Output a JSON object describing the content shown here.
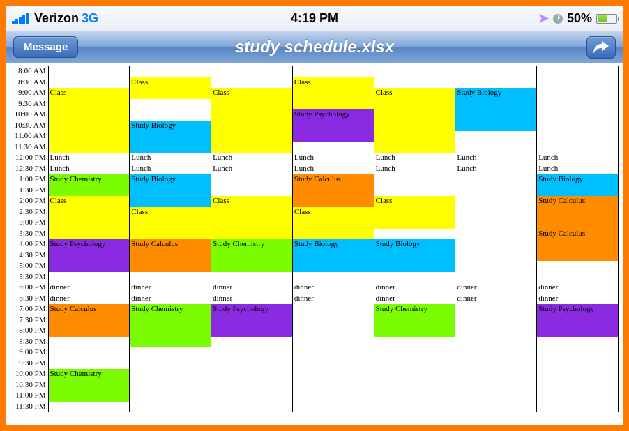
{
  "status": {
    "carrier": "Verizon",
    "network": "3G",
    "time": "4:19 PM",
    "battery_pct": "50%",
    "battery_fill_pct": 50
  },
  "nav": {
    "back_label": "Message",
    "title": "study schedule.xlsx"
  },
  "colors": {
    "class": "#ffff00",
    "biology": "#00bfff",
    "chemistry": "#7cfc00",
    "psychology": "#8a2be2",
    "calculus": "#ff8c00",
    "none": ""
  },
  "times": [
    "8:00 AM",
    "8:30 AM",
    "9:00 AM",
    "9:30 AM",
    "10:00 AM",
    "10:30 AM",
    "11:00 AM",
    "11:30 AM",
    "12:00 PM",
    "12:30 PM",
    "1:00 PM",
    "1:30 PM",
    "2:00 PM",
    "2:30 PM",
    "3:00 PM",
    "3:30 PM",
    "4:00 PM",
    "4:30 PM",
    "5:00 PM",
    "5:30 PM",
    "6:00 PM",
    "6:30 PM",
    "7:00 PM",
    "7:30 PM",
    "8:00 PM",
    "8:30 PM",
    "9:00 PM",
    "9:30 PM",
    "10:00 PM",
    "10:30 PM",
    "11:00 PM",
    "11:30 PM"
  ],
  "lunch": "Lunch",
  "dinner": "dinner",
  "labels": {
    "class": "Class",
    "biology": "Study Biology",
    "chemistry": "Study Chemistry",
    "psychology": "Study Psychology",
    "calculus": "Study Calculus"
  },
  "grid": [
    [
      {
        "c": "none"
      },
      {
        "c": "none"
      },
      {
        "c": "none"
      },
      {
        "c": "none"
      },
      {
        "c": "none"
      },
      {
        "c": "none"
      },
      {
        "c": "none"
      }
    ],
    [
      {
        "c": "none"
      },
      {
        "c": "class",
        "t": "class"
      },
      {
        "c": "none"
      },
      {
        "c": "class",
        "t": "class"
      },
      {
        "c": "none"
      },
      {
        "c": "none"
      },
      {
        "c": "none"
      }
    ],
    [
      {
        "c": "class",
        "t": "class"
      },
      {
        "c": "class"
      },
      {
        "c": "class",
        "t": "class"
      },
      {
        "c": "class"
      },
      {
        "c": "class",
        "t": "class"
      },
      {
        "c": "biology",
        "t": "biology"
      },
      {
        "c": "none"
      }
    ],
    [
      {
        "c": "class"
      },
      {
        "c": "none"
      },
      {
        "c": "class"
      },
      {
        "c": "class"
      },
      {
        "c": "class"
      },
      {
        "c": "biology"
      },
      {
        "c": "none"
      }
    ],
    [
      {
        "c": "class"
      },
      {
        "c": "none"
      },
      {
        "c": "class"
      },
      {
        "c": "psychology",
        "t": "psychology"
      },
      {
        "c": "class"
      },
      {
        "c": "biology"
      },
      {
        "c": "none"
      }
    ],
    [
      {
        "c": "class"
      },
      {
        "c": "biology",
        "t": "biology"
      },
      {
        "c": "class"
      },
      {
        "c": "psychology"
      },
      {
        "c": "class"
      },
      {
        "c": "biology"
      },
      {
        "c": "none"
      }
    ],
    [
      {
        "c": "class"
      },
      {
        "c": "biology"
      },
      {
        "c": "class"
      },
      {
        "c": "psychology"
      },
      {
        "c": "class"
      },
      {
        "c": "none"
      },
      {
        "c": "none"
      }
    ],
    [
      {
        "c": "class"
      },
      {
        "c": "biology"
      },
      {
        "c": "class"
      },
      {
        "c": "none"
      },
      {
        "c": "class"
      },
      {
        "c": "none"
      },
      {
        "c": "none"
      }
    ],
    [
      {
        "lunch": true
      },
      {
        "lunch": true
      },
      {
        "lunch": true
      },
      {
        "lunch": true
      },
      {
        "lunch": true
      },
      {
        "lunch": true
      },
      {
        "lunch": true
      }
    ],
    [
      {
        "lunch": true
      },
      {
        "lunch": true
      },
      {
        "lunch": true
      },
      {
        "lunch": true
      },
      {
        "lunch": true
      },
      {
        "lunch": true
      },
      {
        "lunch": true
      }
    ],
    [
      {
        "c": "chemistry",
        "t": "chemistry"
      },
      {
        "c": "biology",
        "t": "biology"
      },
      {
        "c": "none"
      },
      {
        "c": "calculus",
        "t": "calculus"
      },
      {
        "c": "none"
      },
      {
        "c": "none"
      },
      {
        "c": "biology",
        "t": "biology"
      }
    ],
    [
      {
        "c": "chemistry"
      },
      {
        "c": "biology"
      },
      {
        "c": "none"
      },
      {
        "c": "calculus"
      },
      {
        "c": "none"
      },
      {
        "c": "none"
      },
      {
        "c": "biology"
      }
    ],
    [
      {
        "c": "class",
        "t": "class"
      },
      {
        "c": "biology"
      },
      {
        "c": "class",
        "t": "class"
      },
      {
        "c": "calculus"
      },
      {
        "c": "class",
        "t": "class"
      },
      {
        "c": "none"
      },
      {
        "c": "calculus",
        "t": "calculus"
      }
    ],
    [
      {
        "c": "class"
      },
      {
        "c": "class",
        "t": "class"
      },
      {
        "c": "class"
      },
      {
        "c": "class",
        "t": "class"
      },
      {
        "c": "class"
      },
      {
        "c": "none"
      },
      {
        "c": "calculus"
      }
    ],
    [
      {
        "c": "class"
      },
      {
        "c": "class"
      },
      {
        "c": "class"
      },
      {
        "c": "class"
      },
      {
        "c": "class"
      },
      {
        "c": "none"
      },
      {
        "c": "calculus"
      }
    ],
    [
      {
        "c": "class"
      },
      {
        "c": "class"
      },
      {
        "c": "class"
      },
      {
        "c": "class"
      },
      {
        "c": "none"
      },
      {
        "c": "none"
      },
      {
        "c": "calculus",
        "t": "calculus"
      }
    ],
    [
      {
        "c": "psychology",
        "t": "psychology"
      },
      {
        "c": "calculus",
        "t": "calculus"
      },
      {
        "c": "chemistry",
        "t": "chemistry"
      },
      {
        "c": "biology",
        "t": "biology"
      },
      {
        "c": "biology",
        "t": "biology"
      },
      {
        "c": "none"
      },
      {
        "c": "calculus"
      }
    ],
    [
      {
        "c": "psychology"
      },
      {
        "c": "calculus"
      },
      {
        "c": "chemistry"
      },
      {
        "c": "biology"
      },
      {
        "c": "biology"
      },
      {
        "c": "none"
      },
      {
        "c": "calculus"
      }
    ],
    [
      {
        "c": "psychology"
      },
      {
        "c": "calculus"
      },
      {
        "c": "chemistry"
      },
      {
        "c": "biology"
      },
      {
        "c": "biology"
      },
      {
        "c": "none"
      },
      {
        "c": "none"
      }
    ],
    [
      {
        "c": "none"
      },
      {
        "c": "none"
      },
      {
        "c": "none"
      },
      {
        "c": "none"
      },
      {
        "c": "none"
      },
      {
        "c": "none"
      },
      {
        "c": "none"
      }
    ],
    [
      {
        "dinner": true
      },
      {
        "dinner": true
      },
      {
        "dinner": true
      },
      {
        "dinner": true
      },
      {
        "dinner": true
      },
      {
        "dinner": true
      },
      {
        "dinner": true
      }
    ],
    [
      {
        "dinner": true
      },
      {
        "dinner": true
      },
      {
        "dinner": true
      },
      {
        "dinner": true
      },
      {
        "dinner": true
      },
      {
        "dinner": true
      },
      {
        "dinner": true
      }
    ],
    [
      {
        "c": "calculus",
        "t": "calculus"
      },
      {
        "c": "chemistry",
        "t": "chemistry"
      },
      {
        "c": "psychology",
        "t": "psychology"
      },
      {
        "c": "none"
      },
      {
        "c": "chemistry",
        "t": "chemistry"
      },
      {
        "c": "none"
      },
      {
        "c": "psychology",
        "t": "psychology"
      }
    ],
    [
      {
        "c": "calculus"
      },
      {
        "c": "chemistry"
      },
      {
        "c": "psychology"
      },
      {
        "c": "none"
      },
      {
        "c": "chemistry"
      },
      {
        "c": "none"
      },
      {
        "c": "psychology"
      }
    ],
    [
      {
        "c": "calculus"
      },
      {
        "c": "chemistry"
      },
      {
        "c": "psychology"
      },
      {
        "c": "none"
      },
      {
        "c": "chemistry"
      },
      {
        "c": "none"
      },
      {
        "c": "psychology"
      }
    ],
    [
      {
        "c": "none"
      },
      {
        "c": "chemistry"
      },
      {
        "c": "none"
      },
      {
        "c": "none"
      },
      {
        "c": "none"
      },
      {
        "c": "none"
      },
      {
        "c": "none"
      }
    ],
    [
      {
        "c": "none"
      },
      {
        "c": "none"
      },
      {
        "c": "none"
      },
      {
        "c": "none"
      },
      {
        "c": "none"
      },
      {
        "c": "none"
      },
      {
        "c": "none"
      }
    ],
    [
      {
        "c": "none"
      },
      {
        "c": "none"
      },
      {
        "c": "none"
      },
      {
        "c": "none"
      },
      {
        "c": "none"
      },
      {
        "c": "none"
      },
      {
        "c": "none"
      }
    ],
    [
      {
        "c": "chemistry",
        "t": "chemistry"
      },
      {
        "c": "none"
      },
      {
        "c": "none"
      },
      {
        "c": "none"
      },
      {
        "c": "none"
      },
      {
        "c": "none"
      },
      {
        "c": "none"
      }
    ],
    [
      {
        "c": "chemistry"
      },
      {
        "c": "none"
      },
      {
        "c": "none"
      },
      {
        "c": "none"
      },
      {
        "c": "none"
      },
      {
        "c": "none"
      },
      {
        "c": "none"
      }
    ],
    [
      {
        "c": "chemistry"
      },
      {
        "c": "none"
      },
      {
        "c": "none"
      },
      {
        "c": "none"
      },
      {
        "c": "none"
      },
      {
        "c": "none"
      },
      {
        "c": "none"
      }
    ],
    [
      {
        "c": "none"
      },
      {
        "c": "none"
      },
      {
        "c": "none"
      },
      {
        "c": "none"
      },
      {
        "c": "none"
      },
      {
        "c": "none"
      },
      {
        "c": "none"
      }
    ]
  ]
}
